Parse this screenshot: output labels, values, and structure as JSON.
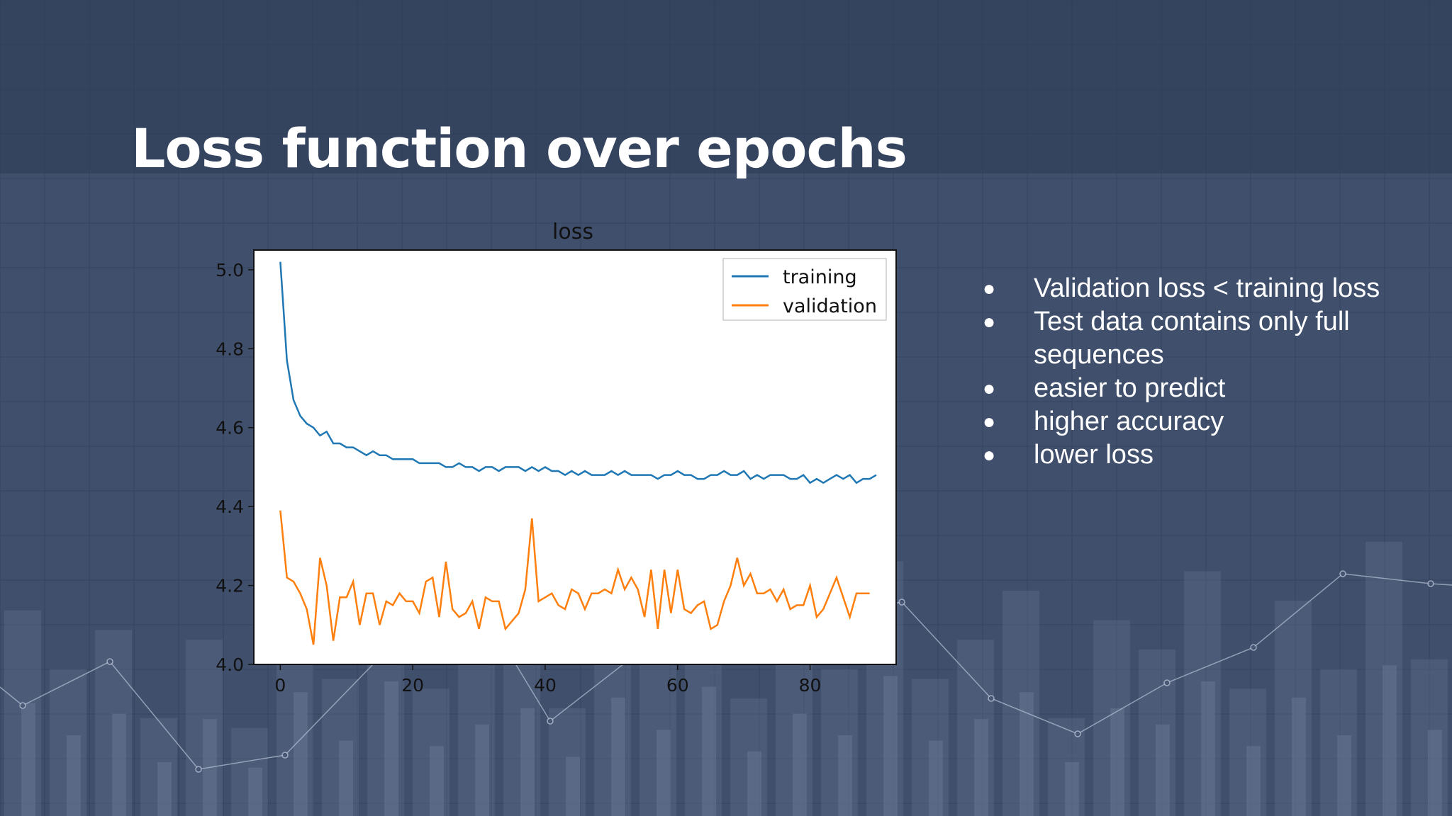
{
  "slide": {
    "title": "Loss function over epochs",
    "bullets": [
      "Validation loss < training loss",
      "Test data contains only full sequences",
      "easier to predict",
      "higher accuracy",
      "lower loss"
    ]
  },
  "colors": {
    "background": "#3f4f6c",
    "training": "#1f77b4",
    "validation": "#ff7f0e"
  },
  "chart_data": {
    "type": "line",
    "title": "loss",
    "xlabel": "",
    "ylabel": "",
    "xlim": [
      -4,
      93
    ],
    "ylim": [
      4.0,
      5.05
    ],
    "xticks": [
      0,
      20,
      40,
      60,
      80
    ],
    "yticks": [
      4.0,
      4.2,
      4.4,
      4.6,
      4.8,
      5.0
    ],
    "ytick_labels": [
      "4.0",
      "4.2",
      "4.4",
      "4.6",
      "4.8",
      "5.0"
    ],
    "grid": false,
    "legend": "top-right",
    "series": [
      {
        "name": "training",
        "color": "#1f77b4",
        "values": [
          5.02,
          4.77,
          4.67,
          4.63,
          4.61,
          4.6,
          4.58,
          4.59,
          4.56,
          4.56,
          4.55,
          4.55,
          4.54,
          4.53,
          4.54,
          4.53,
          4.53,
          4.52,
          4.52,
          4.52,
          4.52,
          4.51,
          4.51,
          4.51,
          4.51,
          4.5,
          4.5,
          4.51,
          4.5,
          4.5,
          4.49,
          4.5,
          4.5,
          4.49,
          4.5,
          4.5,
          4.5,
          4.49,
          4.5,
          4.49,
          4.5,
          4.49,
          4.49,
          4.48,
          4.49,
          4.48,
          4.49,
          4.48,
          4.48,
          4.48,
          4.49,
          4.48,
          4.49,
          4.48,
          4.48,
          4.48,
          4.48,
          4.47,
          4.48,
          4.48,
          4.49,
          4.48,
          4.48,
          4.47,
          4.47,
          4.48,
          4.48,
          4.49,
          4.48,
          4.48,
          4.49,
          4.47,
          4.48,
          4.47,
          4.48,
          4.48,
          4.48,
          4.47,
          4.47,
          4.48,
          4.46,
          4.47,
          4.46,
          4.47,
          4.48,
          4.47,
          4.48,
          4.46,
          4.47,
          4.47,
          4.48
        ]
      },
      {
        "name": "validation",
        "color": "#ff7f0e",
        "values": [
          4.39,
          4.22,
          4.21,
          4.18,
          4.14,
          4.05,
          4.27,
          4.2,
          4.06,
          4.17,
          4.17,
          4.21,
          4.1,
          4.18,
          4.18,
          4.1,
          4.16,
          4.15,
          4.18,
          4.16,
          4.16,
          4.13,
          4.21,
          4.22,
          4.12,
          4.26,
          4.14,
          4.12,
          4.13,
          4.16,
          4.09,
          4.17,
          4.16,
          4.16,
          4.09,
          4.11,
          4.13,
          4.19,
          4.37,
          4.16,
          4.17,
          4.18,
          4.15,
          4.14,
          4.19,
          4.18,
          4.14,
          4.18,
          4.18,
          4.19,
          4.18,
          4.24,
          4.19,
          4.22,
          4.19,
          4.12,
          4.24,
          4.09,
          4.24,
          4.13,
          4.24,
          4.14,
          4.13,
          4.15,
          4.16,
          4.09,
          4.1,
          4.16,
          4.2,
          4.27,
          4.2,
          4.23,
          4.18,
          4.18,
          4.19,
          4.16,
          4.19,
          4.14,
          4.15,
          4.15,
          4.2,
          4.12,
          4.14,
          4.18,
          4.22,
          4.17,
          4.12,
          4.18,
          4.18,
          4.18
        ]
      }
    ]
  }
}
